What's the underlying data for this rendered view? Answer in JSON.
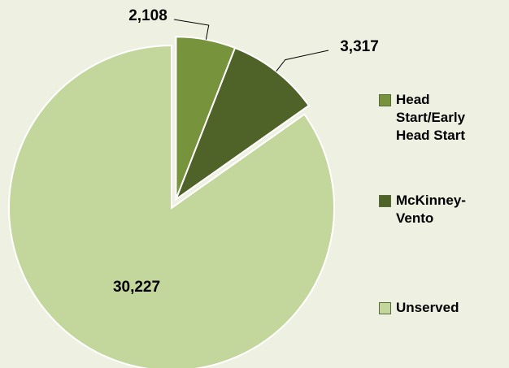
{
  "chart_data": {
    "type": "pie",
    "categories": [
      "Head Start/Early Head Start",
      "McKinney-Vento",
      "Unserved"
    ],
    "values": [
      2108,
      3317,
      30227
    ],
    "value_labels": [
      "2,108",
      "3,317",
      "30,227"
    ],
    "colors": [
      "#77933c",
      "#4f6228",
      "#c3d69b"
    ],
    "exploded": [
      true,
      true,
      false
    ],
    "legend": "right"
  }
}
